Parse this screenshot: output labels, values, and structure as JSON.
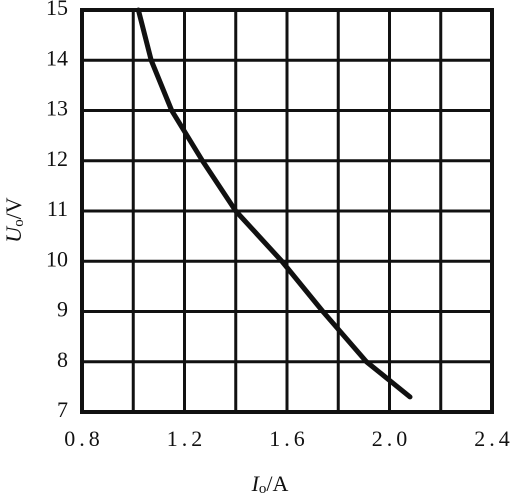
{
  "chart_data": {
    "type": "line",
    "xlabel": [
      "I",
      "o",
      "/A"
    ],
    "ylabel": [
      "U",
      "o",
      "/V"
    ],
    "x": [
      1.02,
      1.07,
      1.15,
      1.27,
      1.4,
      1.58,
      1.74,
      1.91,
      2.08
    ],
    "series": [
      {
        "color": "#111111",
        "values": [
          15,
          14,
          13,
          12,
          11,
          10,
          9,
          8,
          7.3
        ]
      }
    ],
    "xlim": [
      0.8,
      2.4
    ],
    "ylim": [
      7,
      15
    ],
    "xticks": [
      0.8,
      1.2,
      1.6,
      {
        "value": 2,
        "label": "2.0"
      },
      2.4
    ],
    "xminor": [
      1,
      1.4,
      1.8,
      2.2
    ],
    "yticks": [
      7,
      8,
      9,
      10,
      11,
      12,
      13,
      14,
      15
    ],
    "grid": true
  }
}
